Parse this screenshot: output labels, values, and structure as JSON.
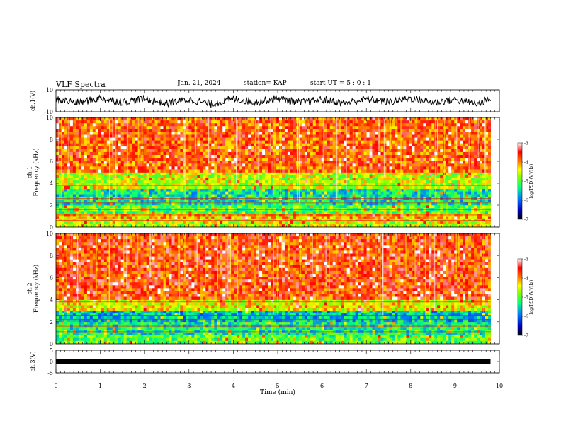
{
  "header": {
    "title": "VLF Spectra",
    "date": "Jan. 21, 2024",
    "station": "station= KAP",
    "start_ut": "start UT =  5 : 0 : 1"
  },
  "chart_data": [
    {
      "type": "line",
      "panel": "ch1-waveform",
      "ylabel": "ch.1(V)",
      "ylim": [
        -10,
        10
      ],
      "yticks": [
        "10",
        "-10"
      ],
      "xlim": [
        0,
        10
      ],
      "description_series": "noisy waveform oscillating roughly between -6 and +6 V",
      "x": [
        0,
        0.5,
        1,
        1.5,
        2,
        2.5,
        3,
        3.5,
        4,
        4.5,
        5,
        5.5,
        6,
        6.5,
        7,
        7.5,
        8,
        8.5,
        9,
        9.5,
        9.8
      ],
      "values": [
        2,
        -3,
        4,
        -2,
        3,
        -4,
        2,
        -5,
        3,
        -2,
        4,
        -3,
        2,
        -4,
        3,
        -2,
        4,
        -3,
        2,
        -5,
        3
      ]
    },
    {
      "type": "heatmap",
      "panel": "ch1-spectrogram",
      "ylabel": "ch.1\nFrequency (kHz)",
      "yticks": [
        "0",
        "2",
        "4",
        "6",
        "8",
        "10"
      ],
      "ylim": [
        0,
        10
      ],
      "xlim": [
        0,
        10
      ],
      "colorbar": {
        "label": "log(PSD)(V²/Hz)",
        "ticks": [
          "-3",
          "-4",
          "-5",
          "-6",
          "-7"
        ],
        "range": [
          -7,
          -3
        ]
      },
      "bands": [
        {
          "f_lo": 0.0,
          "f_hi": 0.8,
          "level": -4.6
        },
        {
          "f_lo": 0.8,
          "f_hi": 1.2,
          "level": -4.2
        },
        {
          "f_lo": 1.2,
          "f_hi": 2.0,
          "level": -5.0
        },
        {
          "f_lo": 2.0,
          "f_hi": 3.5,
          "level": -5.4
        },
        {
          "f_lo": 3.5,
          "f_hi": 5.0,
          "level": -4.6
        },
        {
          "f_lo": 5.0,
          "f_hi": 10.0,
          "level": -3.8
        }
      ]
    },
    {
      "type": "heatmap",
      "panel": "ch2-spectrogram",
      "ylabel": "ch.2\nFrequency (kHz)",
      "yticks": [
        "0",
        "2",
        "4",
        "6",
        "8",
        "10"
      ],
      "ylim": [
        0,
        10
      ],
      "xlim": [
        0,
        10
      ],
      "colorbar": {
        "label": "log(PSD)(V²/Hz)",
        "ticks": [
          "-3",
          "-4",
          "-5",
          "-6",
          "-7"
        ],
        "range": [
          -7,
          -3
        ]
      },
      "bands": [
        {
          "f_lo": 0.0,
          "f_hi": 0.8,
          "level": -5.0
        },
        {
          "f_lo": 0.8,
          "f_hi": 2.0,
          "level": -5.3
        },
        {
          "f_lo": 2.0,
          "f_hi": 3.0,
          "level": -5.6
        },
        {
          "f_lo": 3.0,
          "f_hi": 4.0,
          "level": -4.4
        },
        {
          "f_lo": 4.0,
          "f_hi": 10.0,
          "level": -3.7
        }
      ]
    },
    {
      "type": "line",
      "panel": "ch3-waveform",
      "ylabel": "ch.3(V)",
      "ylim": [
        -5,
        5
      ],
      "yticks": [
        "5",
        "0",
        "-5"
      ],
      "xlim": [
        0,
        10
      ],
      "x": [
        0,
        9.8
      ],
      "values": [
        0,
        0
      ]
    }
  ],
  "xaxis": {
    "label": "Time (min)",
    "ticks": [
      "0",
      "1",
      "2",
      "3",
      "4",
      "5",
      "6",
      "7",
      "8",
      "9",
      "10"
    ]
  },
  "colors": {
    "colormap": [
      "#00008b",
      "#0000ff",
      "#00bfff",
      "#00ff80",
      "#80ff00",
      "#ffff00",
      "#ff8000",
      "#ff0000",
      "#ffffff"
    ]
  }
}
